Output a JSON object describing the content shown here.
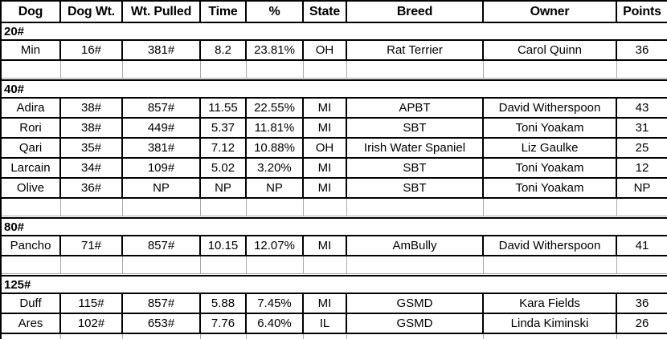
{
  "colors": {
    "cell_border": "#000000",
    "gridline": "#a9a9a9",
    "background": "#ffffff",
    "text": "#000000"
  },
  "table": {
    "columns": [
      "Dog",
      "Dog Wt.",
      "Wt. Pulled",
      "Time",
      "%",
      "State",
      "Breed",
      "Owner",
      "Points"
    ],
    "sections": [
      {
        "label": "20#",
        "rows": [
          [
            "Min",
            "16#",
            "381#",
            "8.2",
            "23.81%",
            "OH",
            "Rat Terrier",
            "Carol Quinn",
            "36"
          ]
        ]
      },
      {
        "label": "40#",
        "rows": [
          [
            "Adira",
            "38#",
            "857#",
            "11.55",
            "22.55%",
            "MI",
            "APBT",
            "David Witherspoon",
            "43"
          ],
          [
            "Rori",
            "38#",
            "449#",
            "5.37",
            "11.81%",
            "MI",
            "SBT",
            "Toni Yoakam",
            "31"
          ],
          [
            "Qari",
            "35#",
            "381#",
            "7.12",
            "10.88%",
            "OH",
            "Irish Water Spaniel",
            "Liz Gaulke",
            "25"
          ],
          [
            "Larcain",
            "34#",
            "109#",
            "5.02",
            "3.20%",
            "MI",
            "SBT",
            "Toni Yoakam",
            "12"
          ],
          [
            "Olive",
            "36#",
            "NP",
            "NP",
            "NP",
            "MI",
            "SBT",
            "Toni Yoakam",
            "NP"
          ]
        ]
      },
      {
        "label": "80#",
        "rows": [
          [
            "Pancho",
            "71#",
            "857#",
            "10.15",
            "12.07%",
            "MI",
            "AmBully",
            "David Witherspoon",
            "41"
          ]
        ]
      },
      {
        "label": "125#",
        "rows": [
          [
            "Duff",
            "115#",
            "857#",
            "5.88",
            "7.45%",
            "MI",
            "GSMD",
            "Kara Fields",
            "36"
          ],
          [
            "Ares",
            "102#",
            "653#",
            "7.76",
            "6.40%",
            "IL",
            "GSMD",
            "Linda Kiminski",
            "26"
          ]
        ]
      }
    ]
  }
}
